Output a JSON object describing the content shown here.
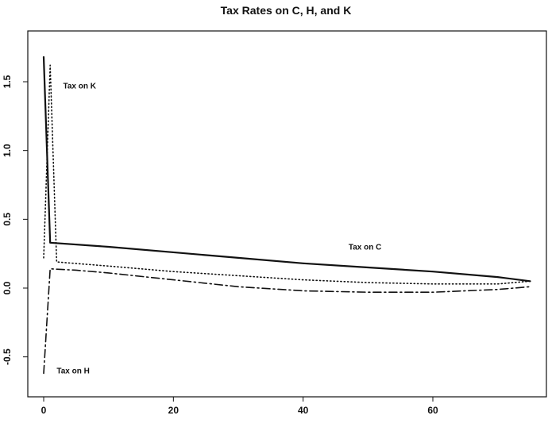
{
  "chart_data": {
    "type": "line",
    "title": "Tax Rates on C, H, and K",
    "xlabel": "",
    "ylabel": "",
    "xlim": [
      0,
      77
    ],
    "ylim": [
      -0.8,
      1.8
    ],
    "grid": false,
    "x_ticks": [
      0,
      20,
      40,
      60
    ],
    "y_ticks": [
      -0.5,
      0.0,
      0.5,
      1.0,
      1.5
    ],
    "x_tick_labels": [
      "0",
      "20",
      "40",
      "60"
    ],
    "y_tick_labels": [
      "-0.5",
      "0.0",
      "0.5",
      "1.0",
      "1.5"
    ],
    "series": [
      {
        "name": "Tax on C",
        "style": "solid",
        "x": [
          0,
          1,
          10,
          20,
          30,
          40,
          50,
          60,
          70,
          75
        ],
        "y": [
          1.68,
          0.33,
          0.3,
          0.26,
          0.22,
          0.18,
          0.15,
          0.12,
          0.08,
          0.05
        ]
      },
      {
        "name": "Tax on K",
        "style": "dotted",
        "x": [
          0,
          1,
          2,
          10,
          20,
          30,
          40,
          50,
          60,
          70,
          75
        ],
        "y": [
          0.22,
          1.62,
          0.19,
          0.16,
          0.12,
          0.09,
          0.06,
          0.04,
          0.03,
          0.03,
          0.05
        ]
      },
      {
        "name": "Tax on H",
        "style": "dashdot",
        "x": [
          0,
          1,
          5,
          10,
          20,
          30,
          40,
          50,
          60,
          70,
          75
        ],
        "y": [
          -0.62,
          0.14,
          0.13,
          0.11,
          0.06,
          0.01,
          -0.02,
          -0.03,
          -0.03,
          -0.01,
          0.01
        ]
      }
    ],
    "annotations": [
      {
        "text": "Tax on K",
        "x": 3,
        "y": 1.45
      },
      {
        "text": "Tax on C",
        "x": 47,
        "y": 0.28
      },
      {
        "text": "Tax on H",
        "x": 2,
        "y": -0.62
      }
    ]
  }
}
